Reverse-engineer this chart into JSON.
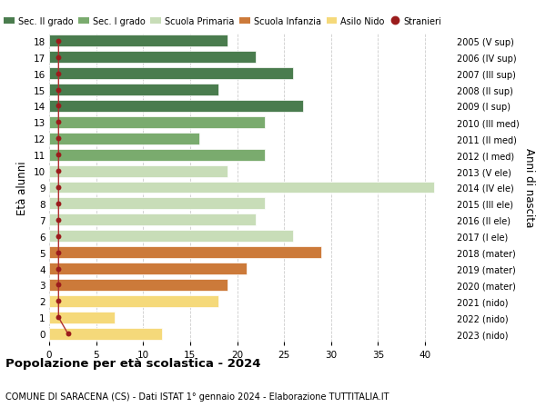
{
  "ages": [
    18,
    17,
    16,
    15,
    14,
    13,
    12,
    11,
    10,
    9,
    8,
    7,
    6,
    5,
    4,
    3,
    2,
    1,
    0
  ],
  "years": [
    "2005 (V sup)",
    "2006 (IV sup)",
    "2007 (III sup)",
    "2008 (II sup)",
    "2009 (I sup)",
    "2010 (III med)",
    "2011 (II med)",
    "2012 (I med)",
    "2013 (V ele)",
    "2014 (IV ele)",
    "2015 (III ele)",
    "2016 (II ele)",
    "2017 (I ele)",
    "2018 (mater)",
    "2019 (mater)",
    "2020 (mater)",
    "2021 (nido)",
    "2022 (nido)",
    "2023 (nido)"
  ],
  "bar_values": [
    19,
    22,
    26,
    18,
    27,
    23,
    16,
    23,
    19,
    41,
    23,
    22,
    26,
    29,
    21,
    19,
    18,
    7,
    12
  ],
  "bar_colors": [
    "#4a7c4e",
    "#4a7c4e",
    "#4a7c4e",
    "#4a7c4e",
    "#4a7c4e",
    "#7aab6e",
    "#7aab6e",
    "#7aab6e",
    "#c8ddb8",
    "#c8ddb8",
    "#c8ddb8",
    "#c8ddb8",
    "#c8ddb8",
    "#cc7a3a",
    "#cc7a3a",
    "#cc7a3a",
    "#f5d97a",
    "#f5d97a",
    "#f5d97a"
  ],
  "stranieri_x": [
    1,
    1,
    1,
    1,
    1,
    1,
    1,
    1,
    1,
    1,
    1,
    1,
    1,
    1,
    1,
    1,
    1,
    1,
    2
  ],
  "stranieri_color": "#9b1c1c",
  "line_color": "#b03030",
  "title": "Popolazione per età scolastica - 2024",
  "subtitle": "COMUNE DI SARACENA (CS) - Dati ISTAT 1° gennaio 2024 - Elaborazione TUTTITALIA.IT",
  "ylabel": "Età alunni",
  "right_label": "Anni di nascita",
  "xlim": [
    0,
    43
  ],
  "ylim": [
    -0.5,
    18.5
  ],
  "xticks": [
    0,
    5,
    10,
    15,
    20,
    25,
    30,
    35,
    40
  ],
  "background_color": "#ffffff",
  "grid_color": "#cccccc",
  "legend_labels": [
    "Sec. II grado",
    "Sec. I grado",
    "Scuola Primaria",
    "Scuola Infanzia",
    "Asilo Nido",
    "Stranieri"
  ],
  "legend_colors": [
    "#4a7c4e",
    "#7aab6e",
    "#c8ddb8",
    "#cc7a3a",
    "#f5d97a",
    "#9b1c1c"
  ]
}
